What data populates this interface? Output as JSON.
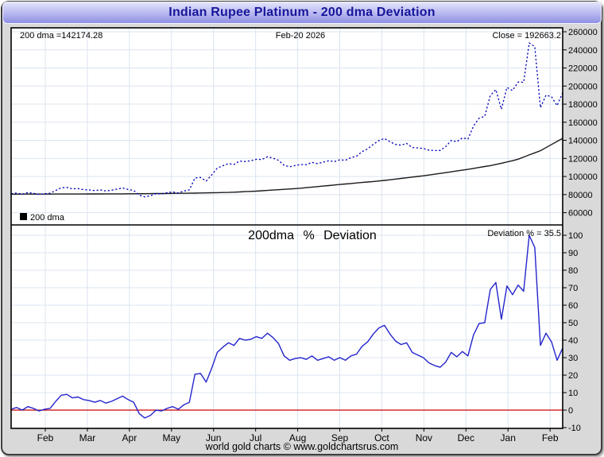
{
  "window": {
    "title": "Indian Rupee Platinum - 200 dma Deviation"
  },
  "footer": {
    "text": "world gold charts © www.goldchartsrus.com"
  },
  "colors": {
    "price": "#0000b8",
    "dma": "#1a1a1a",
    "deviation": "#2525cc",
    "zero_line": "#cc0000",
    "grid": "#dbe4f0",
    "titlebar_top": "#e3e3fc",
    "titlebar_bottom": "#8f8fe2",
    "title_text": "#16169a",
    "window_bg": "#d9d9d9"
  },
  "chart_data": [
    {
      "type": "line",
      "panel": "top",
      "title_left": "200 dma =142174.28",
      "title_center": "Feb-20 2026",
      "title_right": "Close = 192663.2",
      "legend": [
        "200 dma"
      ],
      "legend_position": "bottom-left",
      "grid": true,
      "y_axis_side": "right",
      "ylim": [
        47000,
        264400
      ],
      "yticks": [
        260000,
        240000,
        220000,
        200000,
        180000,
        160000,
        140000,
        120000,
        100000,
        80000,
        60000
      ],
      "x_months": [
        "Feb",
        "Mar",
        "Apr",
        "May",
        "Jun",
        "Jul",
        "Aug",
        "Sep",
        "Oct",
        "Nov",
        "Dec",
        "Jan",
        "Feb"
      ],
      "x_span": "mid-Jan 2025 to Feb-20 2026",
      "close": 192663.2,
      "dma_current": 142174.28,
      "series": [
        {
          "name": "price",
          "style": "dotted",
          "color": "#0000b8",
          "values": [
            80900,
            81700,
            80500,
            82200,
            81400,
            80200,
            81000,
            81400,
            84600,
            87500,
            87900,
            86300,
            86700,
            85500,
            85100,
            84400,
            85200,
            84000,
            84900,
            86100,
            87300,
            85700,
            84600,
            79400,
            77400,
            78700,
            81200,
            80800,
            82100,
            82900,
            81800,
            83900,
            85200,
            98400,
            98900,
            95000,
            101700,
            109300,
            111900,
            114200,
            113300,
            117000,
            116600,
            117400,
            119000,
            118800,
            121900,
            120300,
            117900,
            112400,
            110800,
            112200,
            113200,
            113100,
            115600,
            114200,
            115800,
            117500,
            116400,
            118500,
            117900,
            120900,
            122500,
            127500,
            130600,
            135600,
            139700,
            142100,
            138400,
            135500,
            134600,
            136600,
            132100,
            131600,
            131000,
            129100,
            128700,
            128800,
            133000,
            139900,
            138500,
            142800,
            141400,
            155800,
            164500,
            166500,
            189400,
            196000,
            174300,
            198500,
            195100,
            204400,
            204200,
            247700,
            243600,
            176100,
            190000,
            188200,
            178400,
            192663
          ]
        },
        {
          "name": "200 dma",
          "style": "solid",
          "color": "#1a1a1a",
          "values": [
            80500,
            80515,
            80530,
            80545,
            80560,
            80575,
            80590,
            80600,
            80615,
            80630,
            80645,
            80660,
            80675,
            80690,
            80710,
            80735,
            80760,
            80790,
            80815,
            80840,
            80865,
            80895,
            80940,
            80995,
            81045,
            81100,
            81150,
            81205,
            81255,
            81315,
            81400,
            81480,
            81565,
            81645,
            81750,
            81890,
            82030,
            82170,
            82310,
            82450,
            82680,
            82965,
            83250,
            83535,
            83830,
            84225,
            84620,
            85015,
            85415,
            85810,
            86205,
            86605,
            87100,
            87680,
            88260,
            88840,
            89425,
            90005,
            90585,
            91165,
            91730,
            92280,
            92830,
            93385,
            93935,
            94490,
            95040,
            95685,
            96420,
            97150,
            97875,
            98600,
            99330,
            100055,
            100785,
            101670,
            102555,
            103440,
            104325,
            105210,
            106095,
            106980,
            107925,
            108970,
            110000,
            111030,
            112060,
            113300,
            114700,
            116100,
            117500,
            119165,
            121535,
            123865,
            126200,
            128550,
            131970,
            135385,
            138805,
            142174
          ]
        }
      ]
    },
    {
      "type": "line",
      "panel": "bottom",
      "title": "200dma % Deviation",
      "annotation": "Deviation % = 35.5",
      "deviation_current": 35.5,
      "grid": true,
      "y_axis_side": "right",
      "ylim": [
        -10.5,
        106
      ],
      "yticks": [
        100,
        90,
        80,
        70,
        60,
        50,
        40,
        30,
        20,
        10,
        0,
        -10
      ],
      "zero_line": {
        "value": 0,
        "color": "#cc0000"
      },
      "x_months_shared_with_top": true,
      "series": [
        {
          "name": "deviation_pct",
          "style": "solid",
          "color": "#2525cc",
          "values": [
            0.5,
            1.5,
            0,
            2,
            1,
            -0.5,
            0.5,
            1,
            5,
            8.5,
            9,
            7,
            7.5,
            6,
            5.5,
            4.5,
            5.5,
            4,
            5,
            6.5,
            8,
            6,
            4.5,
            -2,
            -4.5,
            -3,
            0,
            -0.5,
            1,
            2,
            0.5,
            3,
            4.5,
            20.5,
            21,
            16,
            24,
            33,
            36,
            38.5,
            37,
            41,
            40,
            40.5,
            42,
            41,
            44,
            41.5,
            38,
            31,
            28.5,
            29.5,
            30,
            29,
            31,
            28.5,
            29.5,
            30.5,
            28.5,
            30,
            28.5,
            31,
            32,
            36.5,
            39,
            43.5,
            47,
            48.5,
            43.5,
            39.5,
            37.5,
            38.5,
            33,
            31.5,
            30,
            27,
            25.5,
            24.5,
            27.5,
            33,
            30.5,
            33.5,
            31,
            43,
            49.5,
            50,
            69,
            73,
            52,
            71,
            66,
            71.5,
            68,
            100,
            93,
            37,
            44,
            39,
            28.5,
            35.5
          ]
        }
      ]
    }
  ]
}
